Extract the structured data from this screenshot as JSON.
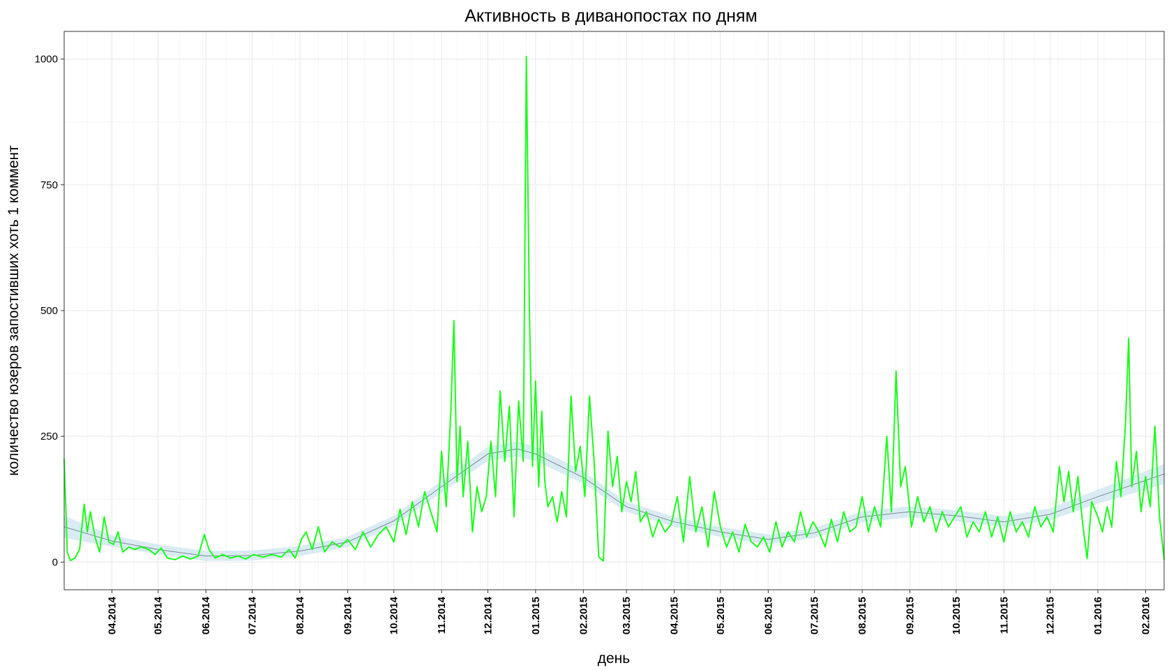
{
  "chart_data": {
    "type": "line",
    "title": "Активность в диванопостах по дням",
    "xlabel": "день",
    "ylabel": "количество юзеров запостивших хоть 1 коммент",
    "ylim": [
      -55,
      1055
    ],
    "xlim": [
      "2014-03-01",
      "2016-02-13"
    ],
    "y_ticks": [
      0,
      250,
      500,
      750,
      1000
    ],
    "x_ticks": [
      "04.2014",
      "05.2014",
      "06.2014",
      "07.2014",
      "08.2014",
      "09.2014",
      "10.2014",
      "11.2014",
      "12.2014",
      "01.2015",
      "02.2015",
      "03.2015",
      "04.2015",
      "05.2015",
      "06.2015",
      "07.2015",
      "08.2015",
      "09.2015",
      "10.2015",
      "11.2015",
      "12.2015",
      "01.2016",
      "02.2016"
    ],
    "x_tick_dates": [
      "2014-04-01",
      "2014-05-01",
      "2014-06-01",
      "2014-07-01",
      "2014-08-01",
      "2014-09-01",
      "2014-10-01",
      "2014-11-01",
      "2014-12-01",
      "2015-01-01",
      "2015-02-01",
      "2015-03-01",
      "2015-04-01",
      "2015-05-01",
      "2015-06-01",
      "2015-07-01",
      "2015-08-01",
      "2015-09-01",
      "2015-10-01",
      "2015-11-01",
      "2015-12-01",
      "2016-01-01",
      "2016-02-01"
    ],
    "grid": true,
    "colors": {
      "series": "#19ff19",
      "smooth_line": "#7b8b98",
      "smooth_band": "#d3e8f2",
      "grid": "#ebebeb",
      "border": "#333333"
    },
    "series": [
      {
        "values_by_date": [
          [
            "2014-03-01",
            205
          ],
          [
            "2014-03-03",
            20
          ],
          [
            "2014-03-05",
            3
          ],
          [
            "2014-03-08",
            8
          ],
          [
            "2014-03-11",
            25
          ],
          [
            "2014-03-14",
            115
          ],
          [
            "2014-03-16",
            60
          ],
          [
            "2014-03-18",
            100
          ],
          [
            "2014-03-21",
            50
          ],
          [
            "2014-03-24",
            20
          ],
          [
            "2014-03-27",
            90
          ],
          [
            "2014-03-30",
            40
          ],
          [
            "2014-04-02",
            35
          ],
          [
            "2014-04-05",
            60
          ],
          [
            "2014-04-08",
            20
          ],
          [
            "2014-04-12",
            30
          ],
          [
            "2014-04-16",
            25
          ],
          [
            "2014-04-20",
            30
          ],
          [
            "2014-04-25",
            25
          ],
          [
            "2014-04-29",
            15
          ],
          [
            "2014-05-03",
            28
          ],
          [
            "2014-05-07",
            8
          ],
          [
            "2014-05-12",
            5
          ],
          [
            "2014-05-17",
            12
          ],
          [
            "2014-05-22",
            6
          ],
          [
            "2014-05-27",
            12
          ],
          [
            "2014-05-31",
            55
          ],
          [
            "2014-06-03",
            25
          ],
          [
            "2014-06-07",
            8
          ],
          [
            "2014-06-12",
            15
          ],
          [
            "2014-06-17",
            8
          ],
          [
            "2014-06-22",
            12
          ],
          [
            "2014-06-27",
            6
          ],
          [
            "2014-07-02",
            15
          ],
          [
            "2014-07-08",
            10
          ],
          [
            "2014-07-14",
            15
          ],
          [
            "2014-07-20",
            10
          ],
          [
            "2014-07-25",
            25
          ],
          [
            "2014-07-29",
            8
          ],
          [
            "2014-08-02",
            45
          ],
          [
            "2014-08-05",
            60
          ],
          [
            "2014-08-09",
            25
          ],
          [
            "2014-08-13",
            70
          ],
          [
            "2014-08-17",
            20
          ],
          [
            "2014-08-22",
            40
          ],
          [
            "2014-08-27",
            30
          ],
          [
            "2014-09-01",
            45
          ],
          [
            "2014-09-06",
            25
          ],
          [
            "2014-09-11",
            60
          ],
          [
            "2014-09-16",
            30
          ],
          [
            "2014-09-21",
            55
          ],
          [
            "2014-09-26",
            70
          ],
          [
            "2014-10-01",
            40
          ],
          [
            "2014-10-05",
            105
          ],
          [
            "2014-10-09",
            55
          ],
          [
            "2014-10-13",
            120
          ],
          [
            "2014-10-17",
            70
          ],
          [
            "2014-10-21",
            140
          ],
          [
            "2014-10-25",
            100
          ],
          [
            "2014-10-29",
            60
          ],
          [
            "2014-11-01",
            220
          ],
          [
            "2014-11-04",
            110
          ],
          [
            "2014-11-07",
            300
          ],
          [
            "2014-11-09",
            480
          ],
          [
            "2014-11-11",
            160
          ],
          [
            "2014-11-13",
            270
          ],
          [
            "2014-11-15",
            130
          ],
          [
            "2014-11-18",
            240
          ],
          [
            "2014-11-21",
            60
          ],
          [
            "2014-11-24",
            150
          ],
          [
            "2014-11-27",
            100
          ],
          [
            "2014-11-30",
            130
          ],
          [
            "2014-12-03",
            240
          ],
          [
            "2014-12-06",
            130
          ],
          [
            "2014-12-09",
            340
          ],
          [
            "2014-12-12",
            200
          ],
          [
            "2014-12-15",
            310
          ],
          [
            "2014-12-18",
            90
          ],
          [
            "2014-12-21",
            320
          ],
          [
            "2014-12-24",
            200
          ],
          [
            "2014-12-26",
            1005
          ],
          [
            "2014-12-28",
            500
          ],
          [
            "2014-12-30",
            190
          ],
          [
            "2015-01-01",
            360
          ],
          [
            "2015-01-03",
            150
          ],
          [
            "2015-01-05",
            300
          ],
          [
            "2015-01-07",
            160
          ],
          [
            "2015-01-09",
            110
          ],
          [
            "2015-01-12",
            130
          ],
          [
            "2015-01-15",
            80
          ],
          [
            "2015-01-18",
            140
          ],
          [
            "2015-01-21",
            90
          ],
          [
            "2015-01-24",
            330
          ],
          [
            "2015-01-27",
            180
          ],
          [
            "2015-01-30",
            230
          ],
          [
            "2015-02-02",
            130
          ],
          [
            "2015-02-05",
            330
          ],
          [
            "2015-02-08",
            200
          ],
          [
            "2015-02-11",
            10
          ],
          [
            "2015-02-14",
            2
          ],
          [
            "2015-02-17",
            260
          ],
          [
            "2015-02-20",
            150
          ],
          [
            "2015-02-23",
            210
          ],
          [
            "2015-02-26",
            100
          ],
          [
            "2015-03-01",
            160
          ],
          [
            "2015-03-04",
            120
          ],
          [
            "2015-03-07",
            180
          ],
          [
            "2015-03-10",
            80
          ],
          [
            "2015-03-14",
            100
          ],
          [
            "2015-03-18",
            50
          ],
          [
            "2015-03-22",
            85
          ],
          [
            "2015-03-26",
            60
          ],
          [
            "2015-03-30",
            75
          ],
          [
            "2015-04-03",
            130
          ],
          [
            "2015-04-07",
            40
          ],
          [
            "2015-04-11",
            170
          ],
          [
            "2015-04-15",
            60
          ],
          [
            "2015-04-19",
            110
          ],
          [
            "2015-04-23",
            30
          ],
          [
            "2015-04-27",
            140
          ],
          [
            "2015-05-01",
            70
          ],
          [
            "2015-05-05",
            30
          ],
          [
            "2015-05-09",
            60
          ],
          [
            "2015-05-13",
            20
          ],
          [
            "2015-05-17",
            75
          ],
          [
            "2015-05-21",
            40
          ],
          [
            "2015-05-25",
            30
          ],
          [
            "2015-05-29",
            50
          ],
          [
            "2015-06-02",
            20
          ],
          [
            "2015-06-06",
            80
          ],
          [
            "2015-06-10",
            30
          ],
          [
            "2015-06-14",
            60
          ],
          [
            "2015-06-18",
            40
          ],
          [
            "2015-06-22",
            100
          ],
          [
            "2015-06-26",
            50
          ],
          [
            "2015-06-30",
            80
          ],
          [
            "2015-07-04",
            60
          ],
          [
            "2015-07-08",
            30
          ],
          [
            "2015-07-12",
            85
          ],
          [
            "2015-07-16",
            40
          ],
          [
            "2015-07-20",
            100
          ],
          [
            "2015-07-24",
            60
          ],
          [
            "2015-07-28",
            70
          ],
          [
            "2015-08-01",
            130
          ],
          [
            "2015-08-05",
            60
          ],
          [
            "2015-08-09",
            110
          ],
          [
            "2015-08-13",
            70
          ],
          [
            "2015-08-17",
            250
          ],
          [
            "2015-08-20",
            100
          ],
          [
            "2015-08-23",
            380
          ],
          [
            "2015-08-26",
            150
          ],
          [
            "2015-08-29",
            190
          ],
          [
            "2015-09-02",
            70
          ],
          [
            "2015-09-06",
            130
          ],
          [
            "2015-09-10",
            80
          ],
          [
            "2015-09-14",
            110
          ],
          [
            "2015-09-18",
            60
          ],
          [
            "2015-09-22",
            100
          ],
          [
            "2015-09-26",
            70
          ],
          [
            "2015-09-30",
            90
          ],
          [
            "2015-10-04",
            110
          ],
          [
            "2015-10-08",
            50
          ],
          [
            "2015-10-12",
            80
          ],
          [
            "2015-10-16",
            60
          ],
          [
            "2015-10-20",
            100
          ],
          [
            "2015-10-24",
            50
          ],
          [
            "2015-10-28",
            90
          ],
          [
            "2015-11-01",
            40
          ],
          [
            "2015-11-05",
            100
          ],
          [
            "2015-11-09",
            60
          ],
          [
            "2015-11-13",
            80
          ],
          [
            "2015-11-17",
            50
          ],
          [
            "2015-11-21",
            110
          ],
          [
            "2015-11-25",
            70
          ],
          [
            "2015-11-29",
            90
          ],
          [
            "2015-12-03",
            60
          ],
          [
            "2015-12-07",
            190
          ],
          [
            "2015-12-10",
            120
          ],
          [
            "2015-12-13",
            180
          ],
          [
            "2015-12-16",
            100
          ],
          [
            "2015-12-19",
            170
          ],
          [
            "2015-12-22",
            80
          ],
          [
            "2015-12-25",
            7
          ],
          [
            "2015-12-28",
            120
          ],
          [
            "2016-01-01",
            90
          ],
          [
            "2016-01-04",
            60
          ],
          [
            "2016-01-07",
            110
          ],
          [
            "2016-01-10",
            70
          ],
          [
            "2016-01-13",
            200
          ],
          [
            "2016-01-16",
            130
          ],
          [
            "2016-01-19",
            280
          ],
          [
            "2016-01-21",
            445
          ],
          [
            "2016-01-23",
            150
          ],
          [
            "2016-01-26",
            220
          ],
          [
            "2016-01-29",
            100
          ],
          [
            "2016-02-01",
            170
          ],
          [
            "2016-02-04",
            110
          ],
          [
            "2016-02-07",
            270
          ],
          [
            "2016-02-10",
            90
          ],
          [
            "2016-02-13",
            5
          ]
        ]
      },
      {
        "values_by_date": [
          [
            "2014-03-01",
            70
          ],
          [
            "2014-04-01",
            42
          ],
          [
            "2014-05-01",
            25
          ],
          [
            "2014-06-01",
            12
          ],
          [
            "2014-07-01",
            13
          ],
          [
            "2014-08-01",
            22
          ],
          [
            "2014-09-01",
            40
          ],
          [
            "2014-10-01",
            82
          ],
          [
            "2014-11-01",
            150
          ],
          [
            "2014-12-01",
            215
          ],
          [
            "2014-12-20",
            225
          ],
          [
            "2015-01-01",
            215
          ],
          [
            "2015-02-01",
            168
          ],
          [
            "2015-03-01",
            110
          ],
          [
            "2015-04-01",
            80
          ],
          [
            "2015-05-01",
            60
          ],
          [
            "2015-06-01",
            45
          ],
          [
            "2015-07-01",
            58
          ],
          [
            "2015-08-01",
            90
          ],
          [
            "2015-09-01",
            100
          ],
          [
            "2015-10-01",
            92
          ],
          [
            "2015-11-01",
            80
          ],
          [
            "2015-12-01",
            95
          ],
          [
            "2016-01-01",
            130
          ],
          [
            "2016-02-13",
            175
          ]
        ],
        "band_halfwidth": [
          22,
          11,
          10,
          10,
          10,
          10,
          10,
          10,
          12,
          14,
          15,
          14,
          12,
          10,
          10,
          10,
          10,
          10,
          11,
          11,
          11,
          11,
          12,
          14,
          20
        ]
      }
    ]
  }
}
